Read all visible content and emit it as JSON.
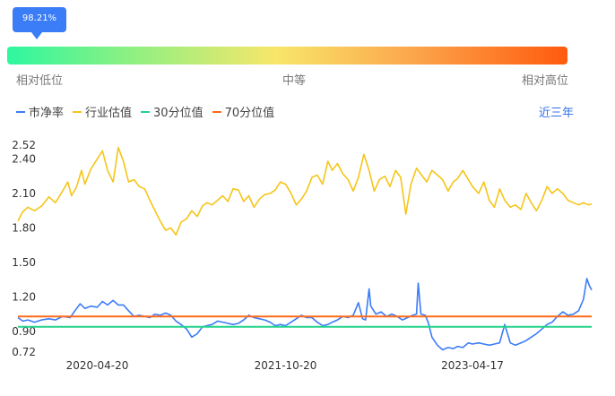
{
  "percentile": {
    "value_label": "98.21%",
    "low_label": "相对低位",
    "mid_label": "中等",
    "high_label": "相对高位"
  },
  "colors": {
    "pb": "#3b7cf7",
    "industry": "#f5c518",
    "p30": "#22d48a",
    "p70": "#ff6a1a",
    "tooltip": "#3b7cf7"
  },
  "period_label": "近三年",
  "chart_data": {
    "type": "line",
    "title": "",
    "xlabel": "",
    "ylabel": "",
    "y_ticks": [
      0.72,
      0.9,
      1.2,
      1.5,
      1.8,
      2.1,
      2.4,
      2.52
    ],
    "y_tick_labels": [
      "0.72",
      "0.90",
      "1.20",
      "1.50",
      "1.80",
      "2.10",
      "2.40",
      "2.52"
    ],
    "ylim": [
      0.72,
      2.52
    ],
    "x_ticks": [
      "2020-04-20",
      "2021-10-20",
      "2023-04-17"
    ],
    "x_range": [
      "2019-09-02",
      "2024-03-29"
    ],
    "grid": false,
    "legend_position": "top-left",
    "series": [
      {
        "name": "市净率",
        "color": "#3b7cf7",
        "points": [
          [
            "2019-09-02",
            1.02
          ],
          [
            "2019-09-16",
            0.99
          ],
          [
            "2019-10-01",
            1.0
          ],
          [
            "2019-10-20",
            0.98
          ],
          [
            "2019-11-10",
            1.0
          ],
          [
            "2019-12-01",
            1.01
          ],
          [
            "2019-12-20",
            1.0
          ],
          [
            "2020-01-10",
            1.03
          ],
          [
            "2020-02-01",
            1.02
          ],
          [
            "2020-02-15",
            1.08
          ],
          [
            "2020-03-01",
            1.14
          ],
          [
            "2020-03-15",
            1.1
          ],
          [
            "2020-04-01",
            1.12
          ],
          [
            "2020-04-20",
            1.11
          ],
          [
            "2020-05-05",
            1.16
          ],
          [
            "2020-05-20",
            1.13
          ],
          [
            "2020-06-05",
            1.17
          ],
          [
            "2020-06-20",
            1.13
          ],
          [
            "2020-07-05",
            1.13
          ],
          [
            "2020-07-20",
            1.08
          ],
          [
            "2020-08-05",
            1.03
          ],
          [
            "2020-08-20",
            1.04
          ],
          [
            "2020-09-05",
            1.03
          ],
          [
            "2020-09-20",
            1.02
          ],
          [
            "2020-10-05",
            1.05
          ],
          [
            "2020-10-20",
            1.04
          ],
          [
            "2020-11-05",
            1.06
          ],
          [
            "2020-11-20",
            1.04
          ],
          [
            "2020-12-05",
            0.99
          ],
          [
            "2020-12-20",
            0.96
          ],
          [
            "2021-01-05",
            0.92
          ],
          [
            "2021-01-20",
            0.85
          ],
          [
            "2021-02-05",
            0.88
          ],
          [
            "2021-02-20",
            0.94
          ],
          [
            "2021-03-05",
            0.95
          ],
          [
            "2021-03-20",
            0.96
          ],
          [
            "2021-04-05",
            0.99
          ],
          [
            "2021-04-20",
            0.98
          ],
          [
            "2021-05-05",
            0.97
          ],
          [
            "2021-05-20",
            0.96
          ],
          [
            "2021-06-05",
            0.97
          ],
          [
            "2021-06-20",
            1.0
          ],
          [
            "2021-07-05",
            1.04
          ],
          [
            "2021-07-20",
            1.02
          ],
          [
            "2021-08-05",
            1.01
          ],
          [
            "2021-08-20",
            1.0
          ],
          [
            "2021-09-05",
            0.98
          ],
          [
            "2021-09-20",
            0.95
          ],
          [
            "2021-10-05",
            0.96
          ],
          [
            "2021-10-20",
            0.95
          ],
          [
            "2021-11-05",
            0.98
          ],
          [
            "2021-11-20",
            1.01
          ],
          [
            "2021-12-05",
            1.04
          ],
          [
            "2021-12-20",
            1.02
          ],
          [
            "2022-01-05",
            1.02
          ],
          [
            "2022-01-20",
            0.98
          ],
          [
            "2022-02-05",
            0.95
          ],
          [
            "2022-02-20",
            0.96
          ],
          [
            "2022-03-05",
            0.98
          ],
          [
            "2022-03-20",
            1.0
          ],
          [
            "2022-04-05",
            1.03
          ],
          [
            "2022-04-20",
            1.02
          ],
          [
            "2022-05-05",
            1.04
          ],
          [
            "2022-05-20",
            1.15
          ],
          [
            "2022-06-01",
            1.01
          ],
          [
            "2022-06-10",
            1.0
          ],
          [
            "2022-06-20",
            1.27
          ],
          [
            "2022-06-25",
            1.12
          ],
          [
            "2022-07-10",
            1.05
          ],
          [
            "2022-07-25",
            1.07
          ],
          [
            "2022-08-10",
            1.03
          ],
          [
            "2022-08-25",
            1.05
          ],
          [
            "2022-09-10",
            1.03
          ],
          [
            "2022-09-25",
            1.0
          ],
          [
            "2022-10-10",
            1.02
          ],
          [
            "2022-10-25",
            1.04
          ],
          [
            "2022-11-05",
            1.05
          ],
          [
            "2022-11-10",
            1.32
          ],
          [
            "2022-11-18",
            1.05
          ],
          [
            "2022-12-01",
            1.04
          ],
          [
            "2022-12-10",
            0.97
          ],
          [
            "2022-12-20",
            0.85
          ],
          [
            "2023-01-05",
            0.78
          ],
          [
            "2023-01-20",
            0.74
          ],
          [
            "2023-02-05",
            0.76
          ],
          [
            "2023-02-20",
            0.75
          ],
          [
            "2023-03-05",
            0.77
          ],
          [
            "2023-03-20",
            0.76
          ],
          [
            "2023-04-05",
            0.8
          ],
          [
            "2023-04-17",
            0.79
          ],
          [
            "2023-05-05",
            0.8
          ],
          [
            "2023-05-20",
            0.79
          ],
          [
            "2023-06-05",
            0.78
          ],
          [
            "2023-06-20",
            0.79
          ],
          [
            "2023-07-05",
            0.8
          ],
          [
            "2023-07-20",
            0.96
          ],
          [
            "2023-08-05",
            0.8
          ],
          [
            "2023-08-20",
            0.78
          ],
          [
            "2023-09-05",
            0.8
          ],
          [
            "2023-09-20",
            0.82
          ],
          [
            "2023-10-05",
            0.85
          ],
          [
            "2023-10-20",
            0.88
          ],
          [
            "2023-11-05",
            0.92
          ],
          [
            "2023-11-20",
            0.96
          ],
          [
            "2023-12-05",
            0.98
          ],
          [
            "2023-12-20",
            1.03
          ],
          [
            "2024-01-05",
            1.07
          ],
          [
            "2024-01-20",
            1.04
          ],
          [
            "2024-02-05",
            1.05
          ],
          [
            "2024-02-20",
            1.08
          ],
          [
            "2024-03-05",
            1.18
          ],
          [
            "2024-03-15",
            1.36
          ],
          [
            "2024-03-22",
            1.3
          ],
          [
            "2024-03-29",
            1.26
          ]
        ]
      },
      {
        "name": "行业估值",
        "color": "#f5c518",
        "points": [
          [
            "2019-09-02",
            1.86
          ],
          [
            "2019-09-16",
            1.94
          ],
          [
            "2019-10-01",
            1.98
          ],
          [
            "2019-10-20",
            1.95
          ],
          [
            "2019-11-10",
            1.99
          ],
          [
            "2019-12-01",
            2.07
          ],
          [
            "2019-12-20",
            2.02
          ],
          [
            "2020-01-10",
            2.12
          ],
          [
            "2020-01-25",
            2.2
          ],
          [
            "2020-02-05",
            2.08
          ],
          [
            "2020-02-20",
            2.16
          ],
          [
            "2020-03-05",
            2.3
          ],
          [
            "2020-03-15",
            2.18
          ],
          [
            "2020-04-01",
            2.31
          ],
          [
            "2020-04-20",
            2.4
          ],
          [
            "2020-05-05",
            2.47
          ],
          [
            "2020-05-20",
            2.3
          ],
          [
            "2020-06-05",
            2.2
          ],
          [
            "2020-06-20",
            2.5
          ],
          [
            "2020-07-05",
            2.38
          ],
          [
            "2020-07-20",
            2.2
          ],
          [
            "2020-08-05",
            2.22
          ],
          [
            "2020-08-20",
            2.16
          ],
          [
            "2020-09-05",
            2.14
          ],
          [
            "2020-09-20",
            2.04
          ],
          [
            "2020-10-05",
            1.95
          ],
          [
            "2020-10-20",
            1.86
          ],
          [
            "2020-11-05",
            1.78
          ],
          [
            "2020-11-20",
            1.8
          ],
          [
            "2020-12-05",
            1.74
          ],
          [
            "2020-12-20",
            1.85
          ],
          [
            "2021-01-05",
            1.88
          ],
          [
            "2021-01-20",
            1.95
          ],
          [
            "2021-02-05",
            1.9
          ],
          [
            "2021-02-20",
            1.99
          ],
          [
            "2021-03-05",
            2.02
          ],
          [
            "2021-03-20",
            2.0
          ],
          [
            "2021-04-05",
            2.04
          ],
          [
            "2021-04-20",
            2.08
          ],
          [
            "2021-05-05",
            2.03
          ],
          [
            "2021-05-20",
            2.14
          ],
          [
            "2021-06-05",
            2.13
          ],
          [
            "2021-06-20",
            2.03
          ],
          [
            "2021-07-05",
            2.08
          ],
          [
            "2021-07-20",
            1.98
          ],
          [
            "2021-08-05",
            2.05
          ],
          [
            "2021-08-20",
            2.09
          ],
          [
            "2021-09-05",
            2.1
          ],
          [
            "2021-09-20",
            2.13
          ],
          [
            "2021-10-05",
            2.2
          ],
          [
            "2021-10-20",
            2.18
          ],
          [
            "2021-11-05",
            2.1
          ],
          [
            "2021-11-20",
            2.0
          ],
          [
            "2021-12-05",
            2.05
          ],
          [
            "2021-12-20",
            2.12
          ],
          [
            "2022-01-05",
            2.24
          ],
          [
            "2022-01-20",
            2.26
          ],
          [
            "2022-02-05",
            2.18
          ],
          [
            "2022-02-20",
            2.38
          ],
          [
            "2022-03-05",
            2.3
          ],
          [
            "2022-03-20",
            2.36
          ],
          [
            "2022-04-05",
            2.27
          ],
          [
            "2022-04-20",
            2.22
          ],
          [
            "2022-05-05",
            2.12
          ],
          [
            "2022-05-20",
            2.24
          ],
          [
            "2022-06-05",
            2.44
          ],
          [
            "2022-06-20",
            2.3
          ],
          [
            "2022-07-05",
            2.12
          ],
          [
            "2022-07-20",
            2.22
          ],
          [
            "2022-08-05",
            2.25
          ],
          [
            "2022-08-20",
            2.16
          ],
          [
            "2022-09-05",
            2.3
          ],
          [
            "2022-09-20",
            2.24
          ],
          [
            "2022-10-05",
            1.92
          ],
          [
            "2022-10-20",
            2.18
          ],
          [
            "2022-11-05",
            2.32
          ],
          [
            "2022-11-20",
            2.26
          ],
          [
            "2022-12-05",
            2.2
          ],
          [
            "2022-12-20",
            2.3
          ],
          [
            "2023-01-05",
            2.26
          ],
          [
            "2023-01-20",
            2.22
          ],
          [
            "2023-02-05",
            2.12
          ],
          [
            "2023-02-20",
            2.2
          ],
          [
            "2023-03-05",
            2.23
          ],
          [
            "2023-03-20",
            2.3
          ],
          [
            "2023-04-05",
            2.22
          ],
          [
            "2023-04-17",
            2.16
          ],
          [
            "2023-05-05",
            2.1
          ],
          [
            "2023-05-20",
            2.2
          ],
          [
            "2023-06-05",
            2.04
          ],
          [
            "2023-06-20",
            1.98
          ],
          [
            "2023-07-05",
            2.14
          ],
          [
            "2023-07-20",
            2.04
          ],
          [
            "2023-08-05",
            1.98
          ],
          [
            "2023-08-20",
            2.0
          ],
          [
            "2023-09-05",
            1.96
          ],
          [
            "2023-09-20",
            2.1
          ],
          [
            "2023-10-05",
            2.02
          ],
          [
            "2023-10-20",
            1.95
          ],
          [
            "2023-11-05",
            2.04
          ],
          [
            "2023-11-20",
            2.16
          ],
          [
            "2023-12-05",
            2.1
          ],
          [
            "2023-12-20",
            2.14
          ],
          [
            "2024-01-05",
            2.1
          ],
          [
            "2024-01-20",
            2.04
          ],
          [
            "2024-02-05",
            2.02
          ],
          [
            "2024-02-20",
            2.0
          ],
          [
            "2024-03-05",
            2.02
          ],
          [
            "2024-03-20",
            2.0
          ],
          [
            "2024-03-29",
            2.01
          ]
        ]
      },
      {
        "name": "30分位值",
        "color": "#22d48a",
        "points": [
          [
            "2019-09-02",
            0.94
          ],
          [
            "2024-03-29",
            0.94
          ]
        ]
      },
      {
        "name": "70分位值",
        "color": "#ff6a1a",
        "points": [
          [
            "2019-09-02",
            1.03
          ],
          [
            "2024-03-29",
            1.03
          ]
        ]
      }
    ]
  }
}
